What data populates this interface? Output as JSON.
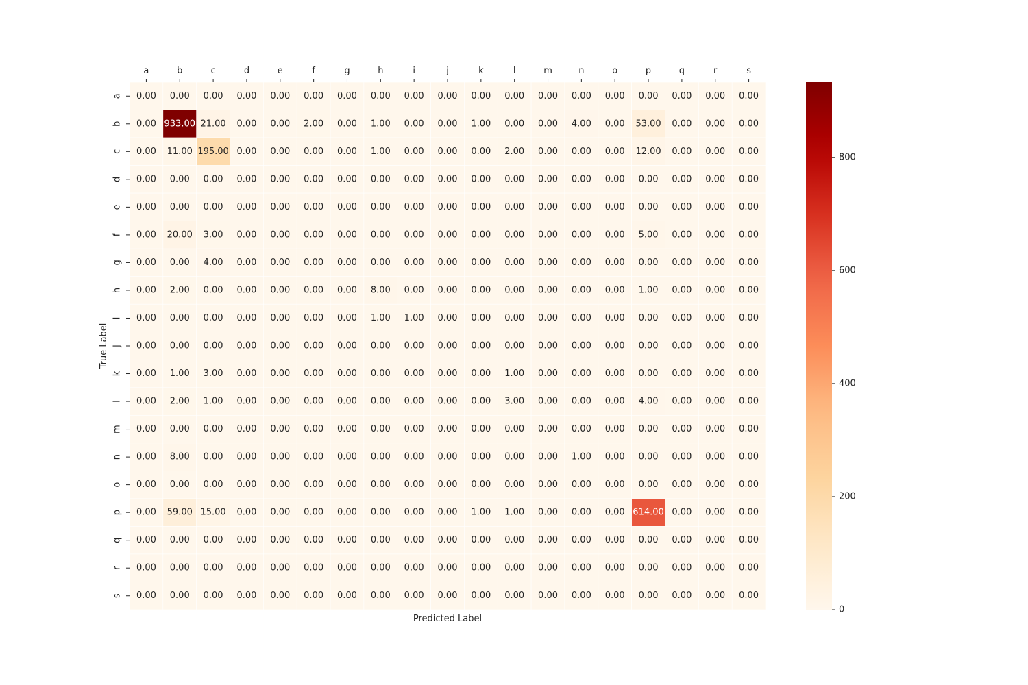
{
  "chart_data": {
    "type": "heatmap",
    "xlabel": "Predicted Label",
    "ylabel": "True Label",
    "x_categories": [
      "a",
      "b",
      "c",
      "d",
      "e",
      "f",
      "g",
      "h",
      "i",
      "j",
      "k",
      "l",
      "m",
      "n",
      "o",
      "p",
      "q",
      "r",
      "s"
    ],
    "y_categories": [
      "a",
      "b",
      "c",
      "d",
      "e",
      "f",
      "g",
      "h",
      "i",
      "j",
      "k",
      "l",
      "m",
      "n",
      "o",
      "p",
      "q",
      "r",
      "s"
    ],
    "value_format": "0.00",
    "values": [
      [
        0,
        0,
        0,
        0,
        0,
        0,
        0,
        0,
        0,
        0,
        0,
        0,
        0,
        0,
        0,
        0,
        0,
        0,
        0
      ],
      [
        0,
        933,
        21,
        0,
        0,
        2,
        0,
        1,
        0,
        0,
        1,
        0,
        0,
        4,
        0,
        53,
        0,
        0,
        0
      ],
      [
        0,
        11,
        195,
        0,
        0,
        0,
        0,
        1,
        0,
        0,
        0,
        2,
        0,
        0,
        0,
        12,
        0,
        0,
        0
      ],
      [
        0,
        0,
        0,
        0,
        0,
        0,
        0,
        0,
        0,
        0,
        0,
        0,
        0,
        0,
        0,
        0,
        0,
        0,
        0
      ],
      [
        0,
        0,
        0,
        0,
        0,
        0,
        0,
        0,
        0,
        0,
        0,
        0,
        0,
        0,
        0,
        0,
        0,
        0,
        0
      ],
      [
        0,
        20,
        3,
        0,
        0,
        0,
        0,
        0,
        0,
        0,
        0,
        0,
        0,
        0,
        0,
        5,
        0,
        0,
        0
      ],
      [
        0,
        0,
        4,
        0,
        0,
        0,
        0,
        0,
        0,
        0,
        0,
        0,
        0,
        0,
        0,
        0,
        0,
        0,
        0
      ],
      [
        0,
        2,
        0,
        0,
        0,
        0,
        0,
        8,
        0,
        0,
        0,
        0,
        0,
        0,
        0,
        1,
        0,
        0,
        0
      ],
      [
        0,
        0,
        0,
        0,
        0,
        0,
        0,
        1,
        1,
        0,
        0,
        0,
        0,
        0,
        0,
        0,
        0,
        0,
        0
      ],
      [
        0,
        0,
        0,
        0,
        0,
        0,
        0,
        0,
        0,
        0,
        0,
        0,
        0,
        0,
        0,
        0,
        0,
        0,
        0
      ],
      [
        0,
        1,
        3,
        0,
        0,
        0,
        0,
        0,
        0,
        0,
        0,
        1,
        0,
        0,
        0,
        0,
        0,
        0,
        0
      ],
      [
        0,
        2,
        1,
        0,
        0,
        0,
        0,
        0,
        0,
        0,
        0,
        3,
        0,
        0,
        0,
        4,
        0,
        0,
        0
      ],
      [
        0,
        0,
        0,
        0,
        0,
        0,
        0,
        0,
        0,
        0,
        0,
        0,
        0,
        0,
        0,
        0,
        0,
        0,
        0
      ],
      [
        0,
        8,
        0,
        0,
        0,
        0,
        0,
        0,
        0,
        0,
        0,
        0,
        0,
        1,
        0,
        0,
        0,
        0,
        0
      ],
      [
        0,
        0,
        0,
        0,
        0,
        0,
        0,
        0,
        0,
        0,
        0,
        0,
        0,
        0,
        0,
        0,
        0,
        0,
        0
      ],
      [
        0,
        59,
        15,
        0,
        0,
        0,
        0,
        0,
        0,
        0,
        1,
        1,
        0,
        0,
        0,
        614,
        0,
        0,
        0
      ],
      [
        0,
        0,
        0,
        0,
        0,
        0,
        0,
        0,
        0,
        0,
        0,
        0,
        0,
        0,
        0,
        0,
        0,
        0,
        0
      ],
      [
        0,
        0,
        0,
        0,
        0,
        0,
        0,
        0,
        0,
        0,
        0,
        0,
        0,
        0,
        0,
        0,
        0,
        0,
        0
      ],
      [
        0,
        0,
        0,
        0,
        0,
        0,
        0,
        0,
        0,
        0,
        0,
        0,
        0,
        0,
        0,
        0,
        0,
        0,
        0
      ]
    ],
    "colorbar": {
      "colormap": "OrRd",
      "vmin": 0,
      "vmax": 933,
      "ticks": [
        0,
        200,
        400,
        600,
        800
      ]
    },
    "x_ticks_position": "top",
    "grid": true,
    "grid_color": "#ffffff"
  }
}
